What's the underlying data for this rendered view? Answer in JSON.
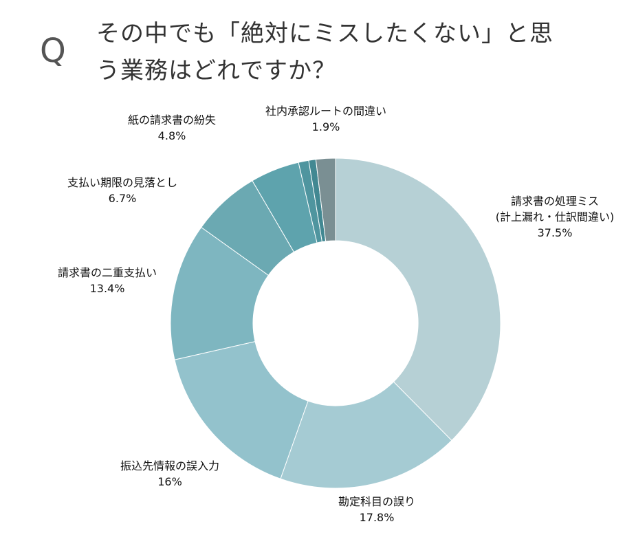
{
  "header": {
    "q_mark": "Q",
    "question_line1": "その中でも「絶対にミスしたくない」と思",
    "question_line2": "う業務はどれですか？"
  },
  "chart_data": {
    "type": "pie",
    "donut": true,
    "start_angle_deg": 0,
    "direction": "clockwise",
    "slices": [
      {
        "label_lines": [
          "請求書の処理ミス",
          "(計上漏れ・仕訳間違い)"
        ],
        "value_text": "37.5%",
        "value": 37.5,
        "color": "#b6d0d5"
      },
      {
        "label_lines": [
          "勘定科目の誤り"
        ],
        "value_text": "17.8%",
        "value": 17.8,
        "color": "#a5cbd3"
      },
      {
        "label_lines": [
          "振込先情報の誤入力"
        ],
        "value_text": "16%",
        "value": 16.0,
        "color": "#93c2cc"
      },
      {
        "label_lines": [
          "請求書の二重支払い"
        ],
        "value_text": "13.4%",
        "value": 13.4,
        "color": "#7eb6c0"
      },
      {
        "label_lines": [
          "支払い期限の見落とし"
        ],
        "value_text": "6.7%",
        "value": 6.7,
        "color": "#6ba9b2"
      },
      {
        "label_lines": [
          "紙の請求書の紛失"
        ],
        "value_text": "4.8%",
        "value": 4.8,
        "color": "#5ea3ad"
      },
      {
        "label_lines": [],
        "value_text": "",
        "value": 1.0,
        "color": "#4f959f"
      },
      {
        "label_lines": [],
        "value_text": "",
        "value": 0.7,
        "color": "#428892"
      },
      {
        "label_lines": [
          "社内承認ルートの間違い"
        ],
        "value_text": "1.9%",
        "value": 1.9,
        "color": "#7a8f93"
      }
    ]
  }
}
